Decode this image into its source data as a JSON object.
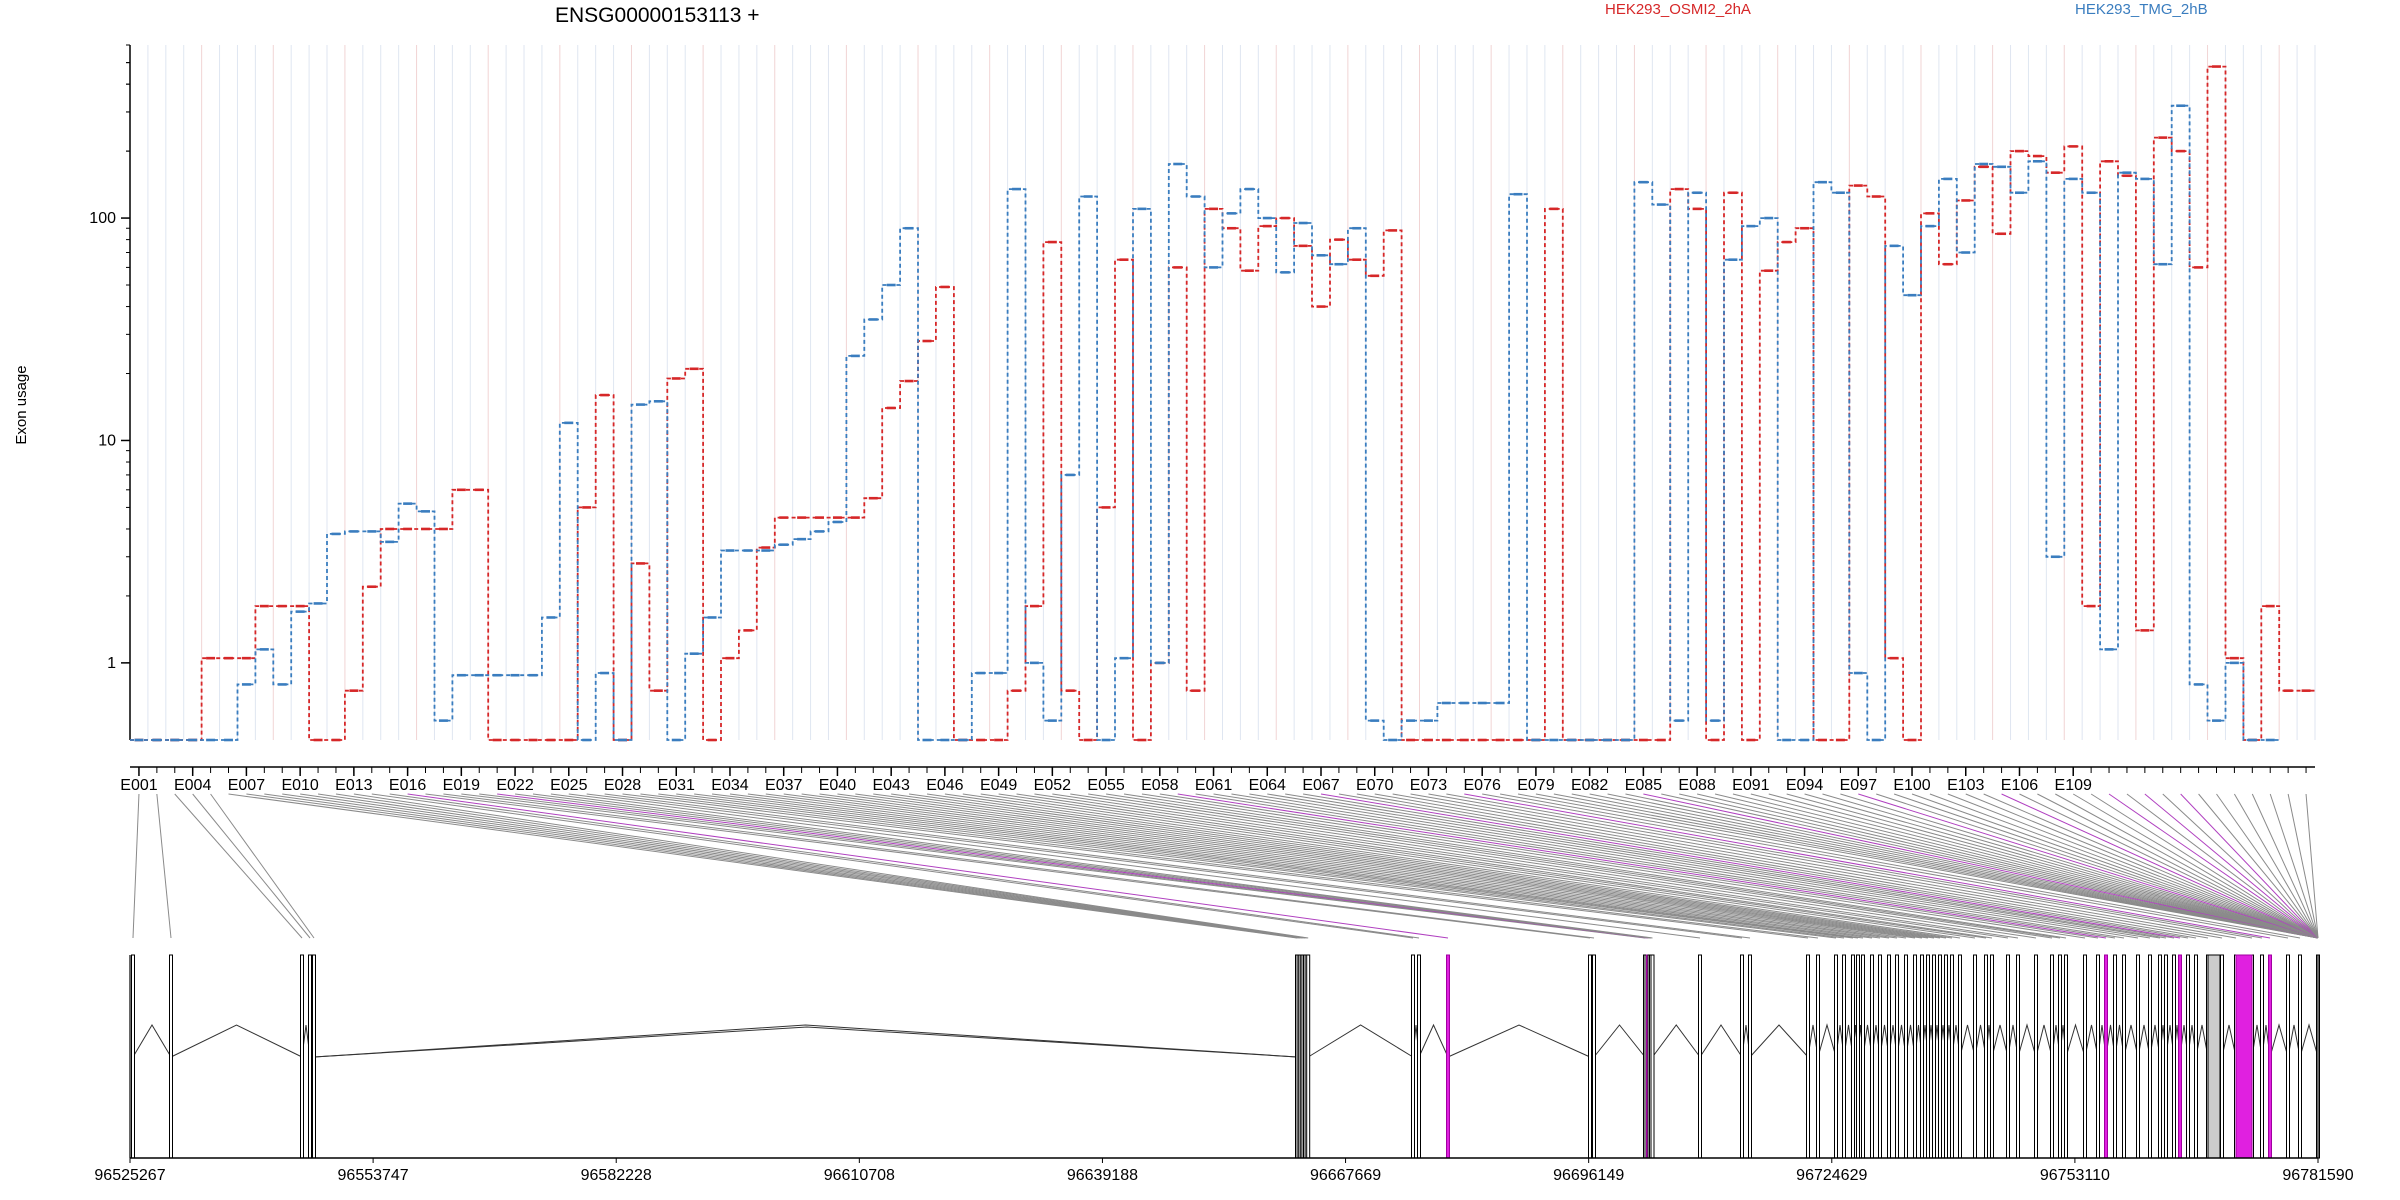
{
  "chart_data": {
    "type": "line",
    "title": "ENSG00000153113 +",
    "ylabel": "Exon usage",
    "xlabel": "",
    "y_scale": "log",
    "ylim": [
      0.45,
      600
    ],
    "y_ticks": [
      "1",
      "10",
      "100"
    ],
    "legend_placement": "top",
    "exon_tick_labels": [
      "E001",
      "E004",
      "E007",
      "E010",
      "E013",
      "E016",
      "E019",
      "E022",
      "E025",
      "E028",
      "E031",
      "E034",
      "E037",
      "E040",
      "E043",
      "E046",
      "E049",
      "E052",
      "E055",
      "E058",
      "E061",
      "E064",
      "E067",
      "E070",
      "E073",
      "E076",
      "E079",
      "E082",
      "E085",
      "E088",
      "E091",
      "E094",
      "E097",
      "E100",
      "E103",
      "E106",
      "E109"
    ],
    "genomic_tick_labels": [
      "96525267",
      "96553747",
      "96582228",
      "96610708",
      "96639188",
      "96667669",
      "96696149",
      "96724629",
      "96753110",
      "96781590"
    ],
    "series": [
      {
        "name": "HEK293_OSMI2_2hA",
        "color": "#d62728",
        "values": [
          0.45,
          0.45,
          0.45,
          0.45,
          1.05,
          1.05,
          1.05,
          1.8,
          1.8,
          1.8,
          0.45,
          0.45,
          0.75,
          2.2,
          4.0,
          4.0,
          4.0,
          4.0,
          6.0,
          6.0,
          0.45,
          0.45,
          0.45,
          0.45,
          0.45,
          5.0,
          16,
          0.45,
          2.8,
          0.75,
          19,
          21,
          0.45,
          1.05,
          1.4,
          3.3,
          4.5,
          4.5,
          4.5,
          4.5,
          4.5,
          5.5,
          14,
          18.5,
          28,
          49,
          0.45,
          0.45,
          0.45,
          0.75,
          1.8,
          78,
          0.75,
          0.45,
          5.0,
          65,
          0.45,
          1.0,
          60,
          0.75,
          110,
          90,
          58,
          92,
          100,
          75,
          40,
          80,
          65,
          55,
          88,
          0.45,
          0.45,
          0.45,
          0.45,
          0.45,
          0.45,
          0.45,
          0.45,
          110,
          0.45,
          0.45,
          0.45,
          0.45,
          0.45,
          0.45,
          135,
          110,
          0.45,
          130,
          0.45,
          58,
          78,
          90,
          0.45,
          0.45,
          140,
          125,
          1.05,
          0.45,
          105,
          62,
          120,
          170,
          85,
          200,
          190,
          160,
          210,
          1.8,
          180,
          155,
          1.4,
          230,
          200,
          60,
          480,
          1.05,
          0.45,
          1.8,
          0.75,
          0.75
        ]
      },
      {
        "name": "HEK293_TMG_2hB",
        "color": "#3a7dbf",
        "values": [
          0.45,
          0.45,
          0.45,
          0.45,
          0.45,
          0.45,
          0.8,
          1.15,
          0.8,
          1.7,
          1.85,
          3.8,
          3.9,
          3.9,
          3.5,
          5.2,
          4.8,
          0.55,
          0.88,
          0.88,
          0.88,
          0.88,
          0.88,
          1.6,
          12,
          0.45,
          0.9,
          0.45,
          14.5,
          15,
          0.45,
          1.1,
          1.6,
          3.2,
          3.2,
          3.2,
          3.4,
          3.6,
          3.9,
          4.3,
          24,
          35,
          50,
          90,
          0.45,
          0.45,
          0.45,
          0.9,
          0.9,
          135,
          1.0,
          0.55,
          7.0,
          125,
          0.45,
          1.05,
          110,
          1.0,
          175,
          125,
          60,
          105,
          135,
          100,
          57,
          95,
          68,
          62,
          90,
          0.55,
          0.45,
          0.55,
          0.55,
          0.66,
          0.66,
          0.66,
          0.66,
          128,
          0.45,
          0.45,
          0.45,
          0.45,
          0.45,
          0.45,
          145,
          115,
          0.55,
          130,
          0.55,
          65,
          92,
          100,
          0.45,
          0.45,
          145,
          130,
          0.9,
          0.45,
          75,
          45,
          92,
          150,
          70,
          175,
          170,
          130,
          180,
          3.0,
          150,
          130,
          1.15,
          160,
          150,
          62,
          320,
          0.8,
          0.55,
          1.0,
          0.45,
          0.45
        ]
      }
    ]
  }
}
